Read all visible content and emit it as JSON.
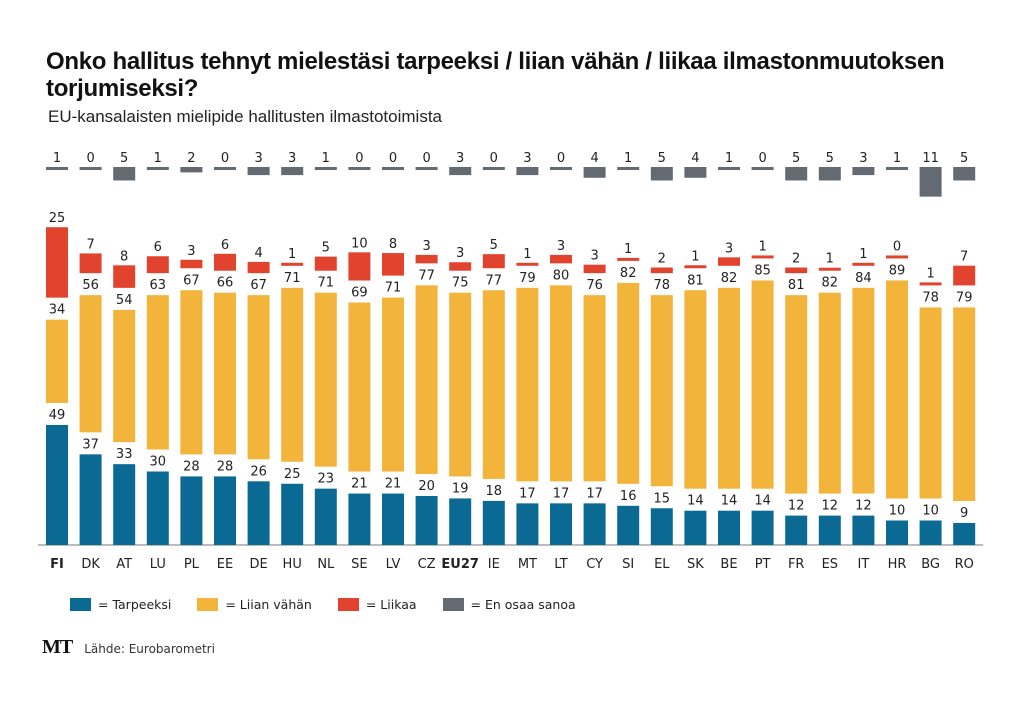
{
  "header": {
    "title": "Onko hallitus tehnyt mielestäsi tarpeeksi / liian vähän / liikaa ilmastonmuutoksen torjumiseksi?",
    "subtitle": "EU-kansalaisten mielipide hallitusten ilmastotoimista"
  },
  "legend": [
    {
      "label": "= Tarpeeksi",
      "color": "#0b6a94"
    },
    {
      "label": "= Liian vähän",
      "color": "#f2b43a"
    },
    {
      "label": "= Liikaa",
      "color": "#e2432e"
    },
    {
      "label": "= En osaa sanoa",
      "color": "#636a72"
    }
  ],
  "footer": {
    "logo": "MT",
    "source": "Lähde: Eurobarometri"
  },
  "chart_data": {
    "type": "bar",
    "stacked": true,
    "title": "Onko hallitus tehnyt mielestäsi tarpeeksi / liian vähän / liikaa ilmastonmuutoksen torjumiseksi?",
    "subtitle": "EU-kansalaisten mielipide hallitusten ilmastotoimista",
    "xlabel": "",
    "ylabel": "",
    "unit": "%",
    "legend_position": "bottom-left",
    "grid": false,
    "bold_categories": [
      "FI",
      "EU27"
    ],
    "categories": [
      "FI",
      "DK",
      "AT",
      "LU",
      "PL",
      "EE",
      "DE",
      "HU",
      "NL",
      "SE",
      "LV",
      "CZ",
      "EU27",
      "IE",
      "MT",
      "LT",
      "CY",
      "SI",
      "EL",
      "SK",
      "BE",
      "PT",
      "FR",
      "ES",
      "IT",
      "HR",
      "BG",
      "RO"
    ],
    "series": [
      {
        "name": "Tarpeeksi",
        "color": "#0b6a94",
        "values": [
          49,
          37,
          33,
          30,
          28,
          28,
          26,
          25,
          23,
          21,
          21,
          20,
          19,
          18,
          17,
          17,
          17,
          16,
          15,
          14,
          14,
          14,
          12,
          12,
          12,
          10,
          10,
          9
        ]
      },
      {
        "name": "Liian vähän",
        "color": "#f2b43a",
        "values": [
          34,
          56,
          54,
          63,
          67,
          66,
          67,
          71,
          71,
          69,
          71,
          77,
          75,
          77,
          79,
          80,
          76,
          82,
          78,
          81,
          82,
          85,
          81,
          82,
          84,
          89,
          78,
          79
        ]
      },
      {
        "name": "Liikaa",
        "color": "#e2432e",
        "values": [
          25,
          7,
          8,
          6,
          3,
          6,
          4,
          1,
          5,
          10,
          8,
          3,
          3,
          5,
          1,
          3,
          3,
          1,
          2,
          1,
          3,
          1,
          2,
          1,
          1,
          0,
          1,
          7
        ]
      },
      {
        "name": "En osaa sanoa",
        "color": "#636a72",
        "values": [
          1,
          0,
          5,
          1,
          2,
          0,
          3,
          3,
          1,
          0,
          0,
          0,
          3,
          0,
          3,
          0,
          4,
          1,
          5,
          4,
          1,
          0,
          5,
          5,
          3,
          1,
          11,
          5
        ]
      }
    ]
  }
}
